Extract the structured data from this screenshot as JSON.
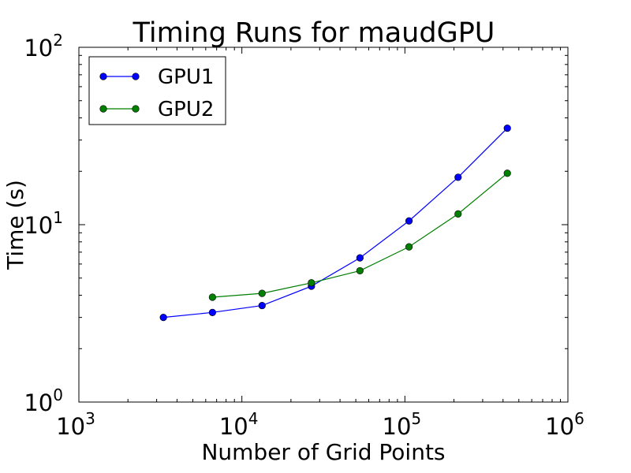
{
  "chart_data": {
    "type": "line",
    "title": "Timing Runs for maudGPU",
    "xlabel": "Number of Grid Points",
    "ylabel": "Time (s)",
    "x_scale": "log",
    "y_scale": "log",
    "xlim": [
      1000,
      1000000
    ],
    "ylim": [
      1,
      100
    ],
    "grid": false,
    "legend_position": "top-left",
    "x_ticks": [
      {
        "base": "10",
        "exp": "3",
        "value": 1000
      },
      {
        "base": "10",
        "exp": "4",
        "value": 10000
      },
      {
        "base": "10",
        "exp": "5",
        "value": 100000
      },
      {
        "base": "10",
        "exp": "6",
        "value": 1000000
      }
    ],
    "y_ticks": [
      {
        "base": "10",
        "exp": "0",
        "value": 1
      },
      {
        "base": "10",
        "exp": "1",
        "value": 10
      },
      {
        "base": "10",
        "exp": "2",
        "value": 100
      }
    ],
    "series": [
      {
        "name": "GPU1",
        "color": "#0000ff",
        "x": [
          3300,
          6600,
          13300,
          26700,
          53000,
          106000,
          212000,
          425000
        ],
        "y": [
          3.0,
          3.2,
          3.5,
          4.5,
          6.5,
          10.5,
          18.5,
          35.0
        ]
      },
      {
        "name": "GPU2",
        "color": "#007f00",
        "x": [
          6600,
          13300,
          26700,
          53000,
          106000,
          212000,
          425000
        ],
        "y": [
          3.9,
          4.1,
          4.7,
          5.5,
          7.5,
          11.5,
          19.5
        ]
      }
    ]
  }
}
